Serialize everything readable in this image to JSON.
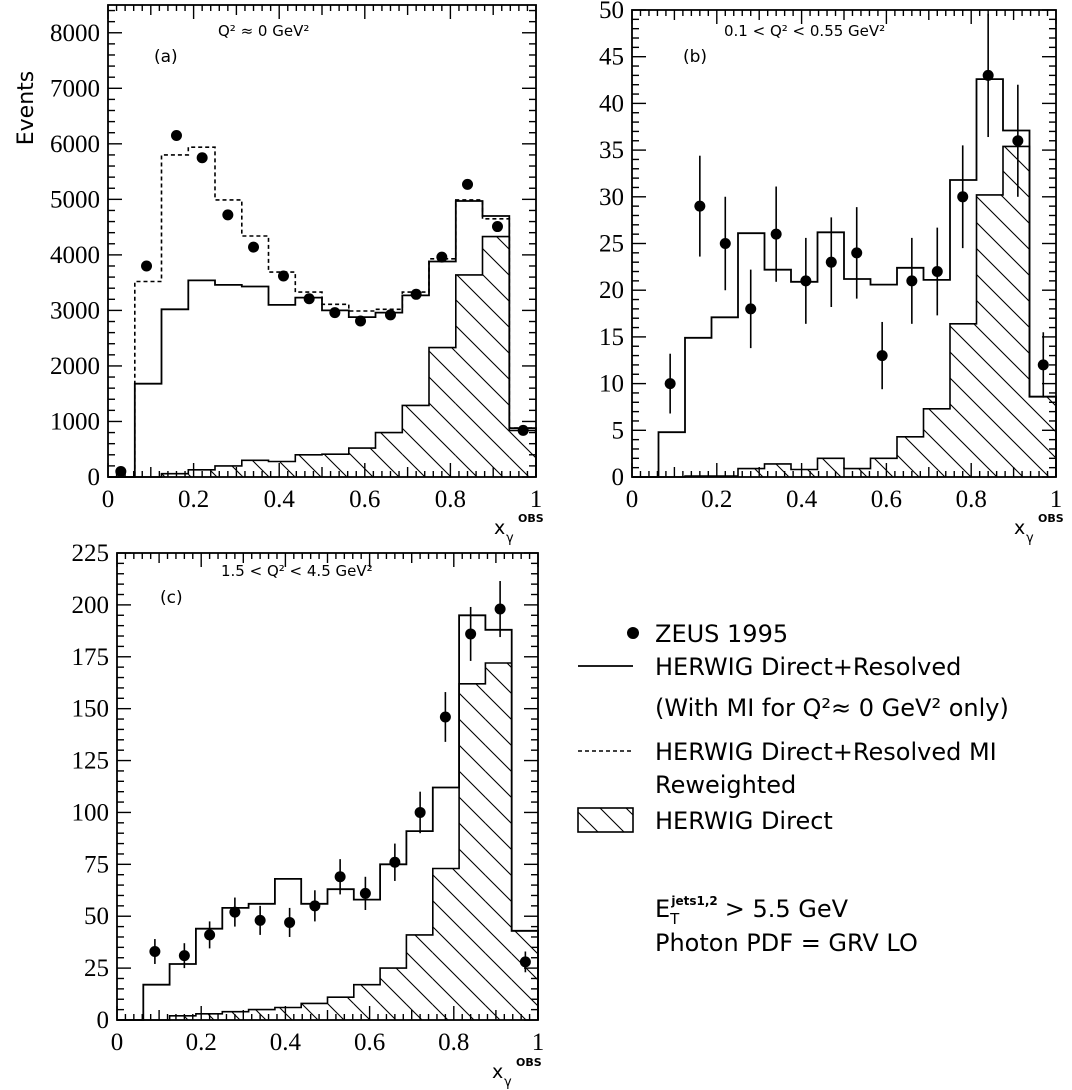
{
  "chart_data": [
    {
      "type": "histogram",
      "label": "(a)",
      "title": "Q² ≈ 0 GeV²",
      "ylabel": "Events",
      "xlabel": "x_γ^OBS",
      "xlim": [
        0,
        1
      ],
      "ylim": [
        0,
        8500
      ],
      "xticks": [
        0,
        0.2,
        0.4,
        0.6,
        0.8,
        1
      ],
      "xtick_labels": [
        "0",
        "0.2",
        "0.4",
        "0.6",
        "0.8",
        "1"
      ],
      "yticks": [
        0,
        1000,
        2000,
        3000,
        4000,
        5000,
        6000,
        7000,
        8000
      ],
      "bin_edges": [
        0,
        0.0625,
        0.125,
        0.1875,
        0.25,
        0.3125,
        0.375,
        0.4375,
        0.5,
        0.5625,
        0.625,
        0.6875,
        0.75,
        0.8125,
        0.875,
        0.9375,
        1
      ],
      "series": [
        {
          "name": "ZEUS 1995",
          "kind": "points",
          "x": [
            0.03,
            0.09,
            0.16,
            0.22,
            0.28,
            0.34,
            0.41,
            0.47,
            0.53,
            0.59,
            0.66,
            0.72,
            0.78,
            0.84,
            0.91,
            0.97
          ],
          "values": [
            100,
            3800,
            6150,
            5750,
            4720,
            4140,
            3620,
            3210,
            2960,
            2810,
            2920,
            3290,
            3960,
            5270,
            4510,
            840
          ]
        },
        {
          "name": "HERWIG Direct+Resolved",
          "kind": "step-solid",
          "values": [
            0,
            1680,
            3020,
            3540,
            3460,
            3430,
            3100,
            3230,
            3000,
            2880,
            2960,
            3270,
            3880,
            4970,
            4700,
            880
          ]
        },
        {
          "name": "HERWIG Direct+Resolved MI Reweighted",
          "kind": "step-dashed",
          "values": [
            0,
            3520,
            5800,
            5940,
            4990,
            4340,
            3690,
            3330,
            3110,
            2990,
            3020,
            3330,
            3930,
            4990,
            4650,
            880
          ]
        },
        {
          "name": "HERWIG Direct",
          "kind": "step-hatched",
          "values": [
            0,
            0,
            60,
            130,
            200,
            300,
            280,
            400,
            410,
            520,
            800,
            1290,
            2330,
            3640,
            4330,
            840
          ]
        }
      ]
    },
    {
      "type": "histogram",
      "label": "(b)",
      "title": "0.1 < Q² < 0.55 GeV²",
      "ylabel": "",
      "xlabel": "x_γ^OBS",
      "xlim": [
        0,
        1
      ],
      "ylim": [
        0,
        50
      ],
      "xticks": [
        0,
        0.2,
        0.4,
        0.6,
        0.8,
        1
      ],
      "xtick_labels": [
        "0",
        "0.2",
        "0.4",
        "0.6",
        "0.8",
        "1"
      ],
      "yticks": [
        0,
        5,
        10,
        15,
        20,
        25,
        30,
        35,
        40,
        45,
        50
      ],
      "bin_edges": [
        0,
        0.0625,
        0.125,
        0.1875,
        0.25,
        0.3125,
        0.375,
        0.4375,
        0.5,
        0.5625,
        0.625,
        0.6875,
        0.75,
        0.8125,
        0.875,
        0.9375,
        1
      ],
      "series": [
        {
          "name": "ZEUS 1995",
          "kind": "points",
          "x": [
            0.09,
            0.16,
            0.22,
            0.28,
            0.34,
            0.41,
            0.47,
            0.53,
            0.59,
            0.66,
            0.72,
            0.78,
            0.84,
            0.91,
            0.97
          ],
          "values": [
            10,
            29,
            25,
            18,
            26,
            21,
            23,
            24,
            13,
            21,
            22,
            30,
            43,
            36,
            12
          ],
          "err": [
            3.2,
            5.4,
            5.0,
            4.2,
            5.1,
            4.6,
            4.8,
            4.9,
            3.6,
            4.6,
            4.7,
            5.5,
            6.6,
            6.0,
            3.5
          ]
        },
        {
          "name": "HERWIG Direct+Resolved",
          "kind": "step-solid",
          "values": [
            0,
            4.8,
            14.9,
            17.1,
            26.1,
            22.2,
            20.9,
            26.2,
            21.2,
            20.6,
            22.4,
            21.1,
            31.8,
            42.6,
            37.1,
            8.6
          ]
        },
        {
          "name": "HERWIG Direct",
          "kind": "step-hatched",
          "values": [
            0,
            0,
            0.1,
            0.1,
            0.9,
            1.4,
            0.8,
            2.0,
            0.9,
            2.0,
            4.3,
            7.3,
            16.4,
            30.2,
            35.4,
            8.6
          ]
        }
      ]
    },
    {
      "type": "histogram",
      "label": "(c)",
      "title": "1.5 < Q² < 4.5 GeV²",
      "ylabel": "",
      "xlabel": "x_γ^OBS",
      "xlim": [
        0,
        1
      ],
      "ylim": [
        0,
        225
      ],
      "xticks": [
        0,
        0.2,
        0.4,
        0.6,
        0.8,
        1
      ],
      "xtick_labels": [
        "0",
        "0.2",
        "0.4",
        "0.6",
        "0.8",
        "1"
      ],
      "yticks": [
        0,
        25,
        50,
        75,
        100,
        125,
        150,
        175,
        200,
        225
      ],
      "bin_edges": [
        0,
        0.0625,
        0.125,
        0.1875,
        0.25,
        0.3125,
        0.375,
        0.4375,
        0.5,
        0.5625,
        0.625,
        0.6875,
        0.75,
        0.8125,
        0.875,
        0.9375,
        1
      ],
      "series": [
        {
          "name": "ZEUS 1995",
          "kind": "points",
          "x": [
            0.09,
            0.16,
            0.22,
            0.28,
            0.34,
            0.41,
            0.47,
            0.53,
            0.59,
            0.66,
            0.72,
            0.78,
            0.84,
            0.91,
            0.97
          ],
          "values": [
            33,
            31,
            41,
            52,
            48,
            47,
            55,
            69,
            61,
            76,
            100,
            146,
            186,
            198,
            28
          ],
          "err": [
            6,
            6,
            6.5,
            7,
            7,
            7,
            7.5,
            8.5,
            8,
            9,
            10,
            12,
            13,
            13.5,
            5
          ]
        },
        {
          "name": "HERWIG Direct+Resolved",
          "kind": "step-solid",
          "values": [
            0,
            17,
            27,
            44,
            54,
            56,
            68,
            56,
            63,
            58,
            75,
            91,
            112,
            195,
            188,
            43
          ]
        },
        {
          "name": "HERWIG Direct",
          "kind": "step-hatched",
          "values": [
            0,
            0,
            2,
            3,
            4,
            5,
            6,
            8,
            11,
            17,
            25,
            41,
            73,
            162,
            172,
            43
          ]
        }
      ]
    }
  ],
  "legend": {
    "entries": [
      {
        "symbol": "dot",
        "label": "ZEUS 1995"
      },
      {
        "symbol": "solid",
        "label": "HERWIG Direct+Resolved"
      },
      {
        "symbol": "none",
        "label": "(With MI for Q²≈ 0 GeV² only)"
      },
      {
        "symbol": "dashed",
        "label": "HERWIG Direct+Resolved MI"
      },
      {
        "symbol": "none",
        "label": "Reweighted"
      },
      {
        "symbol": "hatch",
        "label": "HERWIG Direct"
      }
    ]
  },
  "notes": {
    "line1": "E_T^jets1,2 > 5.5 GeV",
    "line2": "Photon PDF = GRV LO"
  }
}
